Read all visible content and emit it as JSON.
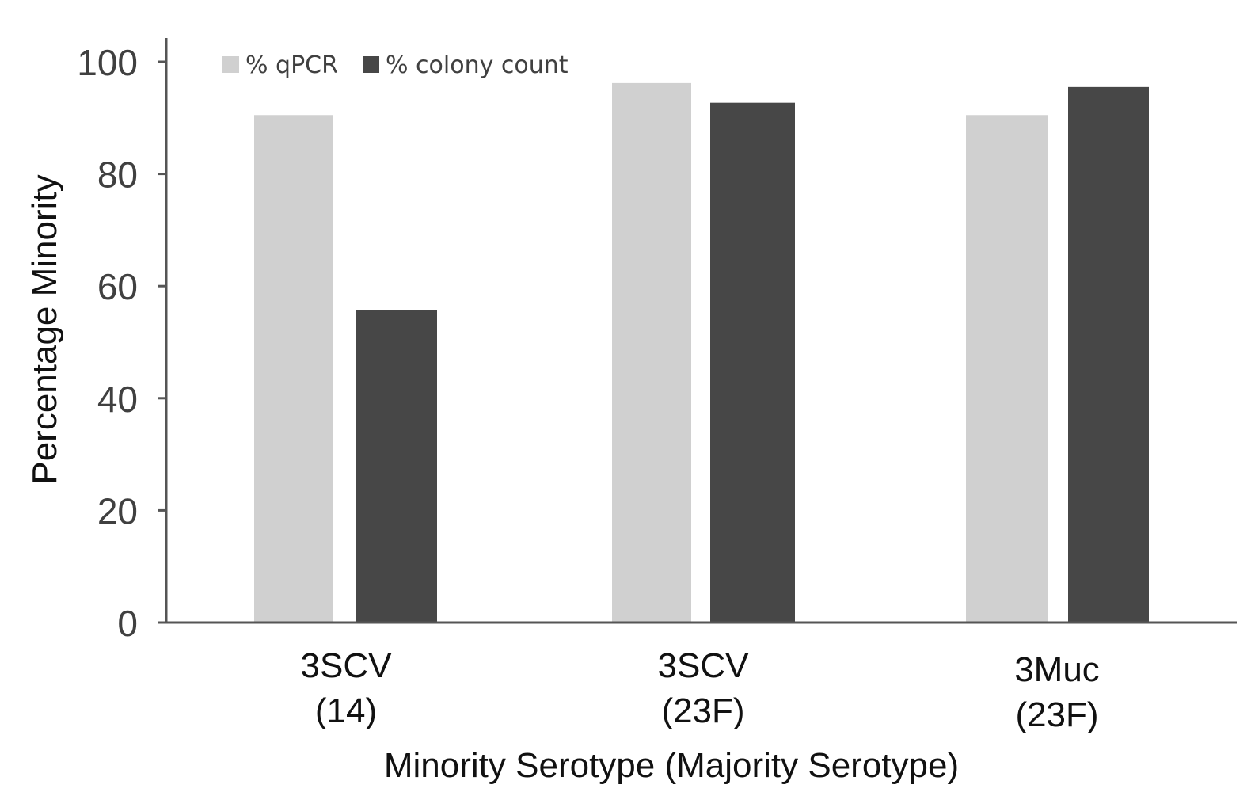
{
  "chart_data": {
    "type": "bar",
    "categories": [
      [
        "3SCV",
        "(14)"
      ],
      [
        "3SCV",
        "(23F)"
      ],
      [
        "3Muc",
        "(23F)"
      ]
    ],
    "series": [
      {
        "name": "% qPCR",
        "color": "#d0d0d0",
        "values": [
          90.5,
          96.2,
          90.5
        ]
      },
      {
        "name": "% colony count",
        "color": "#474747",
        "values": [
          55.7,
          92.7,
          95.5
        ]
      }
    ],
    "xlabel": "Minority Serotype (Majority Serotype)",
    "ylabel": "Percentage Minority",
    "ylim": [
      0,
      100
    ],
    "yticks": [
      "0",
      "20",
      "40",
      "60",
      "80",
      "100"
    ],
    "legend_position": "top-left",
    "grid": false
  }
}
